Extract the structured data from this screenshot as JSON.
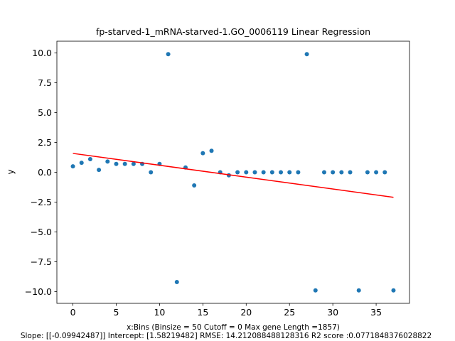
{
  "chart_data": {
    "type": "scatter",
    "title": "fp-starved-1_mRNA-starved-1.GO_0006119 Linear Regression",
    "ylabel": "y",
    "xlabel_line1": "x:Bins  (Binsize = 50 Cutoff = 0 Max gene Length =1857)",
    "xlabel_line2": "Slope: [[-0.09942487]] Intercept: [1.58219482] RMSE: 14.212088488128316 R2 score :0.0771848376028822",
    "xlim": [
      -1.85,
      38.85
    ],
    "ylim": [
      -10.99,
      10.99
    ],
    "xticks": [
      0,
      5,
      10,
      15,
      20,
      25,
      30,
      35
    ],
    "xtick_labels": [
      "0",
      "5",
      "10",
      "15",
      "20",
      "25",
      "30",
      "35"
    ],
    "yticks": [
      -10,
      -7.5,
      -5,
      -2.5,
      0,
      2.5,
      5,
      7.5,
      10
    ],
    "ytick_labels": [
      "−10.0",
      "−7.5",
      "−5.0",
      "−2.5",
      "0.0",
      "2.5",
      "5.0",
      "7.5",
      "10.0"
    ],
    "series": [
      {
        "name": "data",
        "color": "#1f77b4",
        "x": [
          0,
          1,
          2,
          3,
          4,
          5,
          6,
          7,
          8,
          9,
          10,
          11,
          12,
          13,
          14,
          15,
          16,
          17,
          18,
          19,
          20,
          21,
          22,
          23,
          24,
          25,
          26,
          27,
          28,
          29,
          30,
          31,
          32,
          33,
          34,
          35,
          36,
          37
        ],
        "y": [
          0.5,
          0.8,
          1.1,
          0.2,
          0.9,
          0.7,
          0.7,
          0.7,
          0.7,
          0.0,
          0.7,
          9.9,
          -9.2,
          0.4,
          -1.1,
          1.6,
          1.8,
          0.0,
          -0.25,
          0.0,
          0.0,
          0.0,
          0.0,
          0.0,
          0.0,
          0.0,
          0.0,
          9.9,
          -9.9,
          0.0,
          0.0,
          0.0,
          0.0,
          -9.9,
          0.0,
          0.0,
          0.0,
          -9.9
        ]
      }
    ],
    "regression": {
      "name": "fit",
      "color": "#ff0000",
      "x": [
        0,
        37
      ],
      "y": [
        1.58219482,
        -2.09652537
      ]
    }
  }
}
